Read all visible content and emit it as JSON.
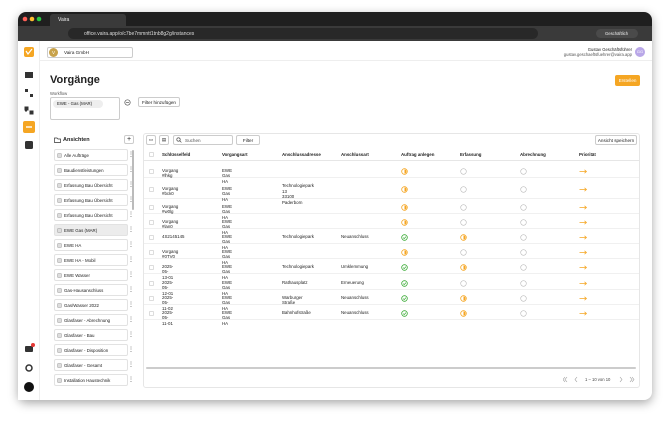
{
  "browser": {
    "tab_title": "Vaira",
    "url": "office.vaira.app/o/c7be7mmntt1tnb8g2g/instances",
    "profile": "Geschäftlich"
  },
  "header": {
    "org_initial": "V",
    "org_name": "Vaira GmbH",
    "user_name": "Gustav Geschäftsführer",
    "user_email": "gustav.geschaeftsfuehrer@vaira.app",
    "user_initials": "GG"
  },
  "page": {
    "title": "Vorgänge",
    "create_button": "Erstellen"
  },
  "filters": {
    "label": "Workflow",
    "chip": "EWE - Gas (MAR)",
    "add_button": "Filter hinzufügen"
  },
  "sidebar": {
    "title": "Ansichten",
    "items": [
      "Alle Aufträge",
      "Baudienstleistungen",
      "Erfassung Bau Übersicht",
      "Erfassung Bau Übersicht",
      "Erfassung Bau Übersicht",
      "EWE Gas (MAR)",
      "EWE HA",
      "EWE HA - Mobil",
      "EWE Wasser",
      "Gas-Hausanschluss",
      "Gas/Wasser 2022",
      "Glasfaser - Abrechnung",
      "Glasfaser - Bau",
      "Glasfaser - Disposition",
      "Glasfaser - Gesamt",
      "Installation Haustechnik"
    ]
  },
  "toolbar": {
    "search_placeholder": "Suchen",
    "filter_button": "Filter",
    "save_button": "Ansicht speichern"
  },
  "table": {
    "columns": [
      "Schlüsselfeld",
      "Vorgangsart",
      "Anschlussadresse",
      "Anschlussart",
      "Auftrag anlegen",
      "Erfassung",
      "Abrechnung",
      "Priorität"
    ],
    "rows": [
      {
        "cells": [
          "Vorgang #lhkg",
          "EWE Gas HA",
          null,
          null
        ],
        "status": [
          "partial",
          "open",
          "open"
        ]
      },
      {
        "cells": [
          "Vorgang #bck0",
          "EWE Gas HA",
          "Technologiepark 13\n33100 Paderborn",
          null
        ],
        "status": [
          "partial",
          "open",
          "open"
        ]
      },
      {
        "cells": [
          "Vorgang #w0lg",
          "EWE Gas HA",
          null,
          null
        ],
        "status": [
          "partial",
          "open",
          "open"
        ]
      },
      {
        "cells": [
          "Vorgang #lan0",
          "EWE Gas HA",
          null,
          null
        ],
        "status": [
          "partial",
          "open",
          "open"
        ]
      },
      {
        "cells": [
          "4S2145145",
          "EWE Gas HA",
          "Technologiepark",
          "Neuanschluss"
        ],
        "status": [
          "done",
          "partial",
          "open"
        ]
      },
      {
        "cells": [
          "Vorgang #0TV0",
          "EWE Gas HA",
          null,
          null
        ],
        "status": [
          "partial",
          "open",
          "open"
        ]
      },
      {
        "cells": [
          "2025-05-13-01",
          "EWE Gas HA",
          "Technologiepark",
          "Umklemmung"
        ],
        "status": [
          "done",
          "partial",
          "open"
        ]
      },
      {
        "cells": [
          "2025-05-12-01",
          "EWE Gas HA",
          "Rathausplatz",
          "Erneuerung"
        ],
        "status": [
          "done",
          "open",
          "open"
        ]
      },
      {
        "cells": [
          "2025-05-11-02",
          "EWE Gas HA",
          "Warburger Straße",
          "Neuanschluss"
        ],
        "status": [
          "done",
          "partial",
          "open"
        ]
      },
      {
        "cells": [
          "2025-05-11-01",
          "EWE Gas HA",
          "Bahnhofstraße",
          "Neuanschluss"
        ],
        "status": [
          "done",
          "partial",
          "open"
        ]
      }
    ]
  },
  "pagination": {
    "range": "1 – 10 von 10"
  }
}
